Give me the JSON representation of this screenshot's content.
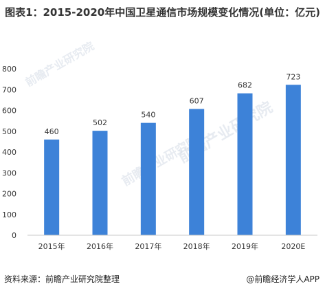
{
  "chart_data": {
    "type": "bar",
    "title": "图表1：2015-2020年中国卫星通信市场规模变化情况(单位：亿元)",
    "categories": [
      "2015年",
      "2016年",
      "2017年",
      "2018年",
      "2019年",
      "2020E"
    ],
    "values": [
      460,
      502,
      540,
      607,
      682,
      723
    ],
    "ylim": [
      0,
      800
    ],
    "yticks": [
      0,
      100,
      200,
      300,
      400,
      500,
      600,
      700,
      800
    ],
    "grid": false,
    "legend": "none",
    "bar_color": "#3d82d8"
  },
  "footer": {
    "source": "资料来源：前瞻产业研究院整理",
    "brand": "@前瞻经济学人APP"
  },
  "watermarks": [
    "前瞻产业研究院",
    "前瞻产业研究院",
    "前瞻产业研究院"
  ]
}
